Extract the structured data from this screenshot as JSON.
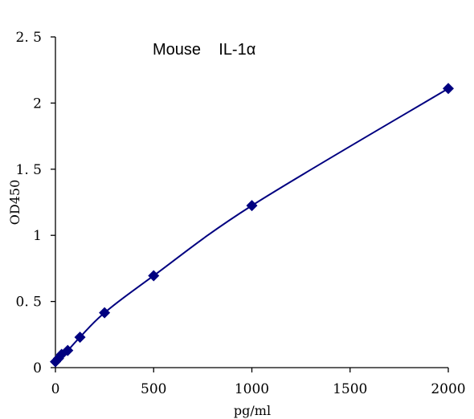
{
  "chart_data": {
    "type": "scatter",
    "title": "Mouse    IL-1α",
    "xlabel": "pg/ml",
    "ylabel": "OD450",
    "xlim": [
      0,
      2000
    ],
    "ylim": [
      0,
      2.5
    ],
    "x_ticks": [
      0,
      500,
      1000,
      1500,
      2000
    ],
    "x_tick_labels": [
      "0",
      "500",
      "1000",
      "1500",
      "2000"
    ],
    "y_ticks": [
      0,
      0.5,
      1,
      1.5,
      2,
      2.5
    ],
    "y_tick_labels": [
      "0",
      "0. 5",
      "1",
      "1. 5",
      "2",
      "2. 5"
    ],
    "grid": false,
    "series": [
      {
        "x": [
          0,
          15.6,
          31.25,
          62.5,
          125,
          250,
          500,
          1000,
          2000
        ],
        "y": [
          0.045,
          0.07,
          0.1,
          0.13,
          0.23,
          0.415,
          0.695,
          1.225,
          2.11
        ],
        "marker": "diamond",
        "fit_line": true,
        "color": "#000080"
      }
    ]
  }
}
